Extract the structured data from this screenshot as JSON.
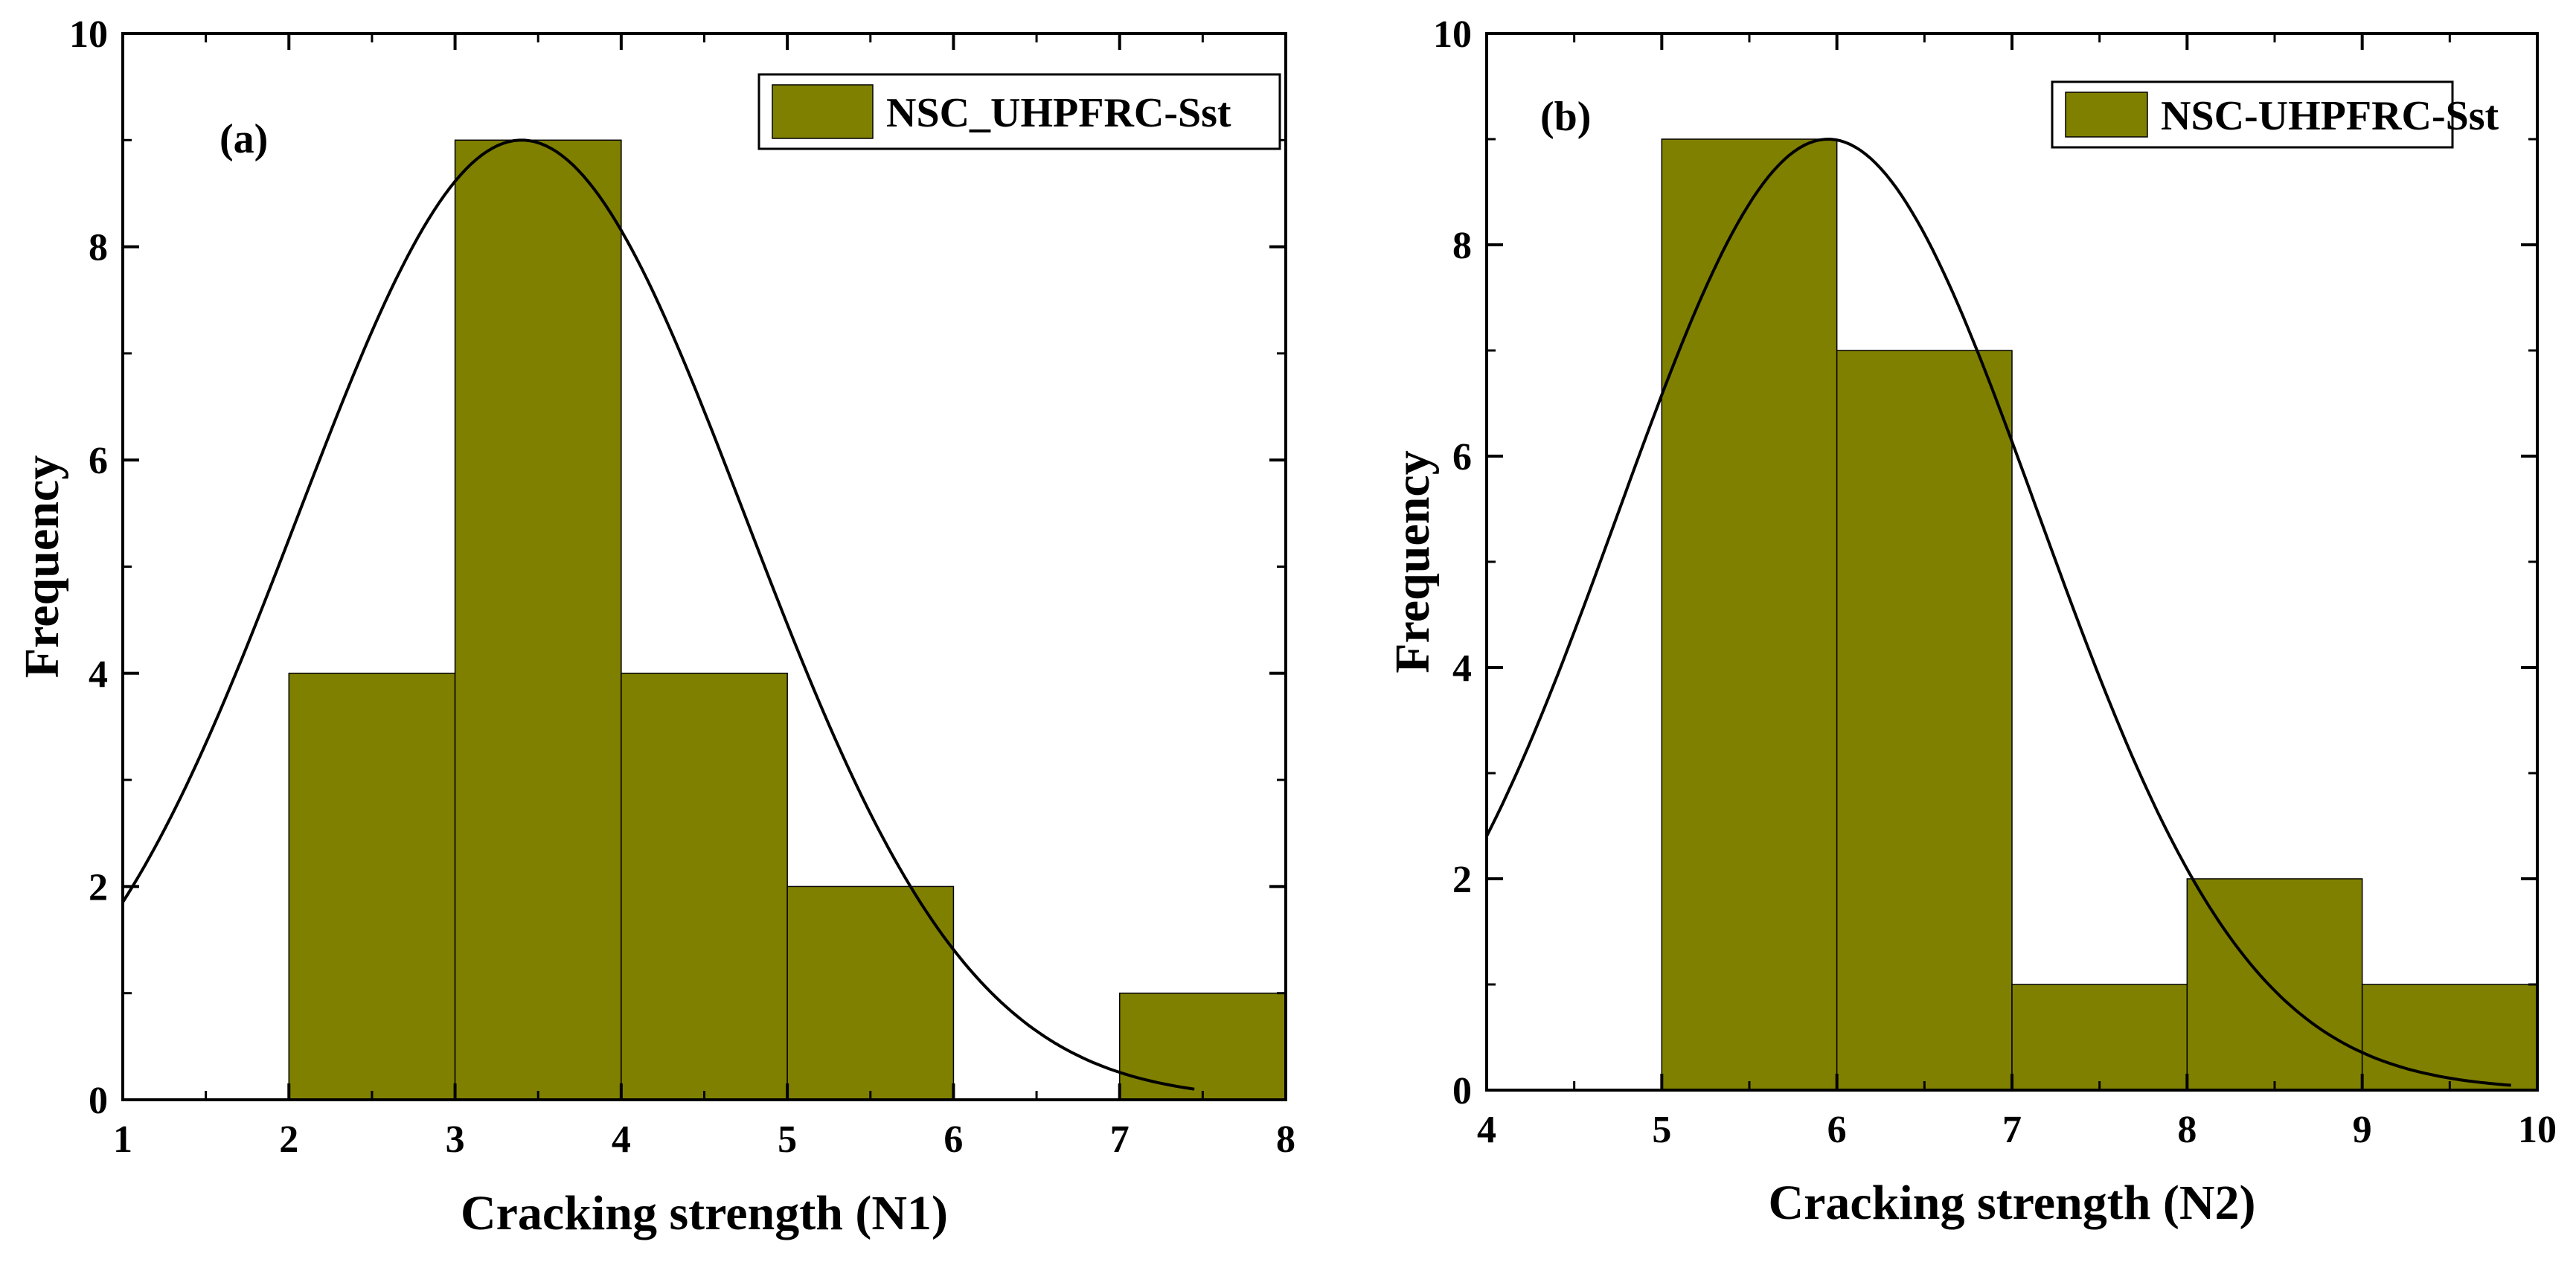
{
  "chart_data": [
    {
      "type": "histogram",
      "panel_label": "(a)",
      "xlabel": "Cracking strength (N1)",
      "ylabel": "Frequency",
      "xlim": [
        1,
        8
      ],
      "ylim": [
        0,
        10
      ],
      "x_ticks": [
        "1",
        "2",
        "3",
        "4",
        "5",
        "6",
        "7",
        "8"
      ],
      "y_ticks": [
        "0",
        "2",
        "4",
        "6",
        "8",
        "10"
      ],
      "legend": "NSC_UHPFRC-Sst",
      "legend_position": "top-right",
      "bar_color": "#808000",
      "bins": [
        {
          "from": 2,
          "to": 3,
          "count": 4
        },
        {
          "from": 3,
          "to": 4,
          "count": 9
        },
        {
          "from": 4,
          "to": 5,
          "count": 4
        },
        {
          "from": 5,
          "to": 6,
          "count": 2
        },
        {
          "from": 6,
          "to": 7,
          "count": 0
        },
        {
          "from": 7,
          "to": 8,
          "count": 1
        }
      ],
      "fit_curve": {
        "type": "normal",
        "mean": 3.4,
        "sd": 1.35,
        "peak": 9.0,
        "x_start": 1,
        "x_end": 7.45
      }
    },
    {
      "type": "histogram",
      "panel_label": "(b)",
      "xlabel": "Cracking strength (N2)",
      "ylabel": "Frequency",
      "xlim": [
        4,
        10
      ],
      "ylim": [
        0,
        10
      ],
      "x_ticks": [
        "4",
        "5",
        "6",
        "7",
        "8",
        "9",
        "10"
      ],
      "y_ticks": [
        "0",
        "2",
        "4",
        "6",
        "8",
        "10"
      ],
      "legend": "NSC-UHPFRC-Sst",
      "legend_position": "top-right",
      "bar_color": "#808000",
      "bins": [
        {
          "from": 5,
          "to": 6,
          "count": 9
        },
        {
          "from": 6,
          "to": 7,
          "count": 7
        },
        {
          "from": 7,
          "to": 8,
          "count": 1
        },
        {
          "from": 8,
          "to": 9,
          "count": 2
        },
        {
          "from": 9,
          "to": 10,
          "count": 1
        }
      ],
      "fit_curve": {
        "type": "normal",
        "mean": 5.95,
        "sd": 1.2,
        "peak": 9.0,
        "x_start": 4,
        "x_end": 9.85
      }
    }
  ]
}
